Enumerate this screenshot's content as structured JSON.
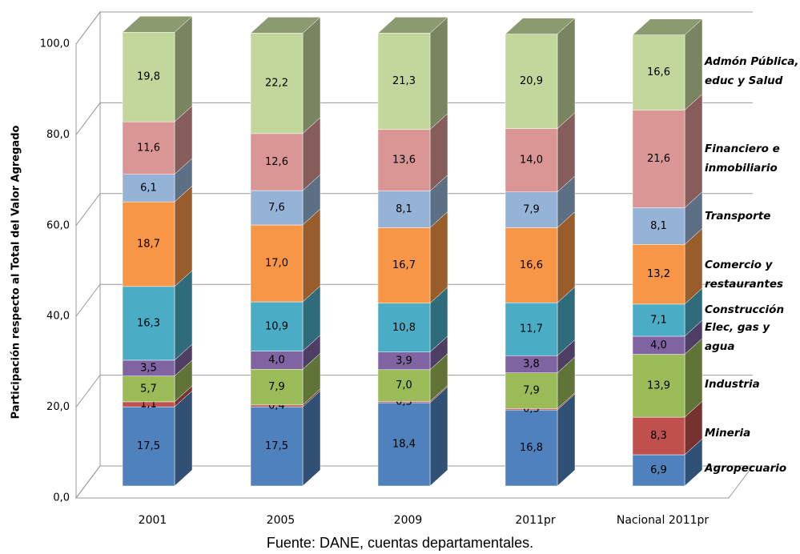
{
  "chart_data": {
    "type": "bar",
    "stacked": true,
    "y_axis_label": "Participación respecto al Total del Valor Agregado",
    "source": "Fuente: DANE, cuentas departamentales.",
    "categories": [
      "2001",
      "2005",
      "2009",
      "2011pr",
      "Nacional 2011pr"
    ],
    "ylim": [
      0,
      100
    ],
    "yticks": [
      {
        "value": 0,
        "label": "0,0"
      },
      {
        "value": 20,
        "label": "20,0"
      },
      {
        "value": 40,
        "label": "40,0"
      },
      {
        "value": 60,
        "label": "60,0"
      },
      {
        "value": 80,
        "label": "80,0"
      },
      {
        "value": 100,
        "label": "100,0"
      }
    ],
    "grid": true,
    "series": [
      {
        "name": "Agropecuario",
        "color": "#4f81bd",
        "values": [
          17.5,
          17.5,
          18.4,
          16.8,
          6.9
        ],
        "value_labels": [
          "17,5",
          "17,5",
          "18,4",
          "16,8",
          "6,9"
        ]
      },
      {
        "name": "Mineria",
        "color": "#c0504d",
        "values": [
          1.1,
          0.4,
          0.3,
          0.3,
          8.3
        ],
        "value_labels": [
          "1,1",
          "0,4",
          "0,3",
          "0,3",
          "8,3"
        ]
      },
      {
        "name": "Industria",
        "color": "#9bbb59",
        "values": [
          5.7,
          7.9,
          7.0,
          7.9,
          13.9
        ],
        "value_labels": [
          "5,7",
          "7,9",
          "7,0",
          "7,9",
          "13,9"
        ]
      },
      {
        "name": "Elec, gas y agua",
        "color": "#8064a2",
        "values": [
          3.5,
          4.0,
          3.9,
          3.8,
          4.0
        ],
        "value_labels": [
          "3,5",
          "4,0",
          "3,9",
          "3,8",
          "4,0"
        ]
      },
      {
        "name": "Construcción",
        "color": "#4bacc6",
        "values": [
          16.3,
          10.9,
          10.8,
          11.7,
          7.1
        ],
        "value_labels": [
          "16,3",
          "10,9",
          "10,8",
          "11,7",
          "7,1"
        ]
      },
      {
        "name": "Comercio y restaurantes",
        "color": "#f79646",
        "values": [
          18.7,
          17.0,
          16.7,
          16.6,
          13.2
        ],
        "value_labels": [
          "18,7",
          "17,0",
          "16,7",
          "16,6",
          "13,2"
        ]
      },
      {
        "name": "Transporte",
        "color": "#95b3d7",
        "values": [
          6.1,
          7.6,
          8.1,
          7.9,
          8.1
        ],
        "value_labels": [
          "6,1",
          "7,6",
          "8,1",
          "7,9",
          "8,1"
        ]
      },
      {
        "name": "Financiero e inmobiliario",
        "color": "#d99694",
        "values": [
          11.6,
          12.6,
          13.6,
          14.0,
          21.6
        ],
        "value_labels": [
          "11,6",
          "12,6",
          "13,6",
          "14,0",
          "21,6"
        ]
      },
      {
        "name": "Admón Pública, educ y Salud",
        "color": "#c3d69b",
        "values": [
          19.8,
          22.2,
          21.3,
          20.9,
          16.6
        ],
        "value_labels": [
          "19,8",
          "22,2",
          "21,3",
          "20,9",
          "16,6"
        ]
      }
    ]
  }
}
